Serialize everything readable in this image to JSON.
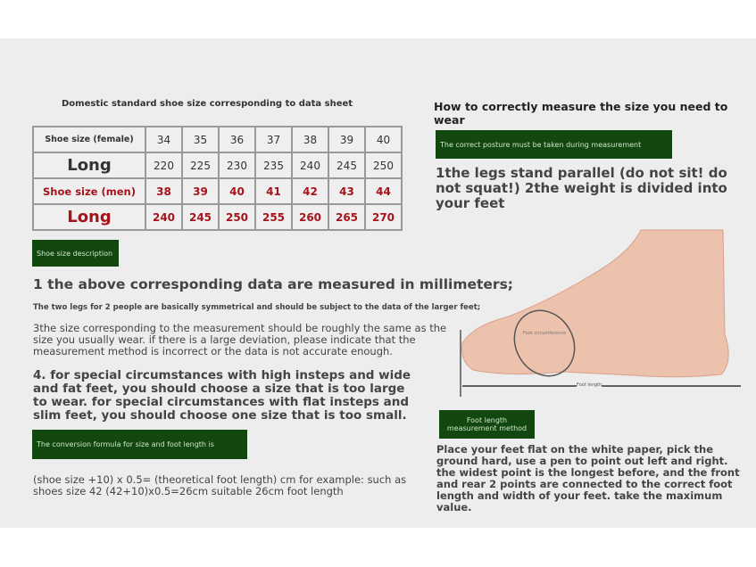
{
  "left": {
    "table_title": "Domestic standard shoe size corresponding to data sheet",
    "rows": [
      {
        "label": "Shoe size (female)",
        "values": [
          "34",
          "35",
          "36",
          "37",
          "38",
          "39",
          "40"
        ]
      },
      {
        "label": "Long",
        "values": [
          "220",
          "225",
          "230",
          "235",
          "240",
          "245",
          "250"
        ]
      },
      {
        "label": "Shoe size (men)",
        "values": [
          "38",
          "39",
          "40",
          "41",
          "42",
          "43",
          "44"
        ]
      },
      {
        "label": "Long",
        "values": [
          "240",
          "245",
          "250",
          "255",
          "260",
          "265",
          "270"
        ]
      }
    ],
    "desc_badge": "Shoe size description",
    "p1": "1 the above corresponding data are measured in millimeters;",
    "p2": "The two legs for 2 people are basically symmetrical and should be subject to the data of the larger feet;",
    "p3": "3the size corresponding to the measurement should be roughly the same as the size you usually wear. if there is a large deviation, please indicate that the measurement method is incorrect or the data is not accurate enough.",
    "p4": "4. for special circumstances with high insteps and wide and fat feet, you should choose a size that is too large to wear. for special circumstances with flat insteps and slim feet, you should choose one size that is too small.",
    "formula_badge": "The conversion formula for size and foot length is",
    "formula": "(shoe size +10) x 0.5= (theoretical foot length) cm for example: such as shoes size 42 (42+10)x0.5=26cm suitable 26cm foot length"
  },
  "right": {
    "title": "How to correctly measure the size you need to wear",
    "posture_badge": "The correct posture must be taken during measurement",
    "posture_text": "1the legs stand parallel (do not sit! do not squat!) 2the weight is divided into your feet",
    "foot_circumference": "Foot circumference",
    "foot_length": "Foot length",
    "method_badge": "Foot length measurement method",
    "method_text": "Place your feet flat on the white paper, pick the ground hard, use a pen to point out left and right. the widest point is the longest before, and the front and rear 2 points are connected to the correct foot length and width of your feet. take the maximum value."
  },
  "colors": {
    "green_badge": "#12470f",
    "red_text": "#a5141c",
    "background": "#ecedec"
  }
}
